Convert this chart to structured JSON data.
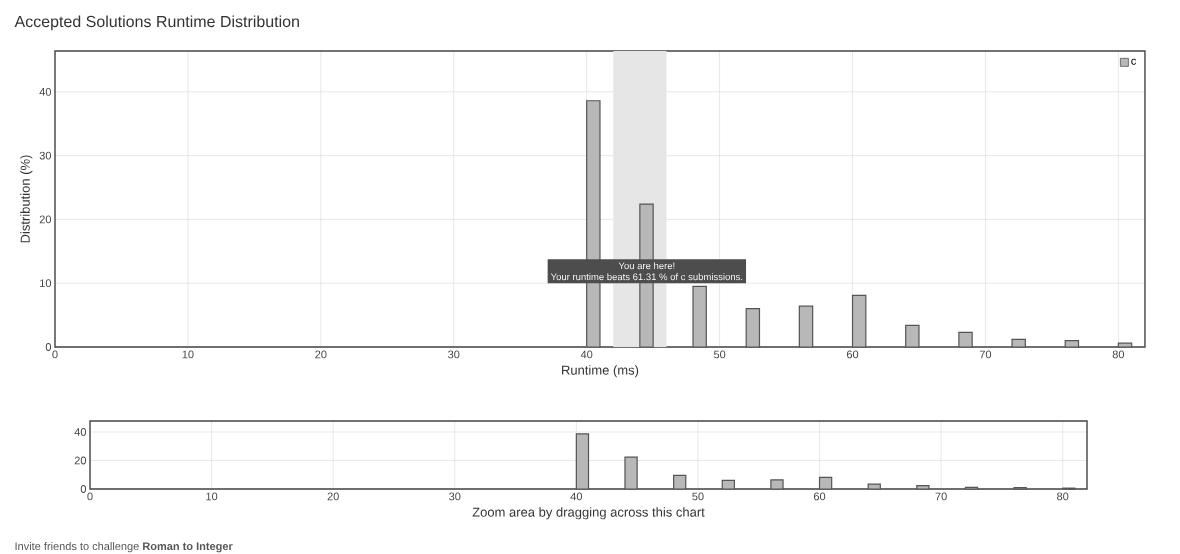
{
  "chart_data": [
    {
      "type": "bar",
      "title": "Accepted Solutions Runtime Distribution",
      "xlabel": "Runtime (ms)",
      "ylabel": "Distribution (%)",
      "x": [
        40.5,
        44.5,
        48.5,
        52.5,
        56.5,
        60.5,
        64.5,
        68.5,
        72.5,
        76.5,
        80.5
      ],
      "series": [
        {
          "name": "c",
          "color": "#b8b8b8",
          "values": [
            38.6,
            22.4,
            9.5,
            6.0,
            6.4,
            8.1,
            3.4,
            2.3,
            1.2,
            1.0,
            0.6
          ]
        }
      ],
      "xlim": [
        0,
        82
      ],
      "ylim": [
        0,
        46.4
      ],
      "xticks": [
        0,
        10,
        20,
        30,
        40,
        50,
        60,
        70,
        80
      ],
      "yticks": [
        0,
        10,
        20,
        30,
        40
      ],
      "bands": [
        {
          "axis": "x",
          "from": 42,
          "to": 46,
          "color": "#e6e6e6"
        }
      ],
      "annotations": [
        "You are here!",
        "Your runtime beats 61.31 % of c submissions."
      ],
      "grid": true,
      "legend": "top right"
    },
    {
      "type": "bar",
      "xlabel": "Zoom area by dragging across this chart",
      "x": [
        40.5,
        44.5,
        48.5,
        52.5,
        56.5,
        60.5,
        64.5,
        68.5,
        72.5,
        76.5,
        80.5
      ],
      "series": [
        {
          "color": "#b8b8b8",
          "values": [
            38.6,
            22.4,
            9.5,
            6.0,
            6.4,
            8.1,
            3.4,
            2.3,
            1.2,
            1.0,
            0.6
          ]
        }
      ],
      "xlim": [
        0,
        82
      ],
      "ylim": [
        0,
        47.7
      ],
      "xticks": [
        0,
        10,
        20,
        30,
        40,
        50,
        60,
        70,
        80
      ],
      "yticks": [
        0,
        20,
        40
      ],
      "annotations": [
        "Invite friends to challenge **Roman to Integer**"
      ],
      "grid": true
    }
  ]
}
